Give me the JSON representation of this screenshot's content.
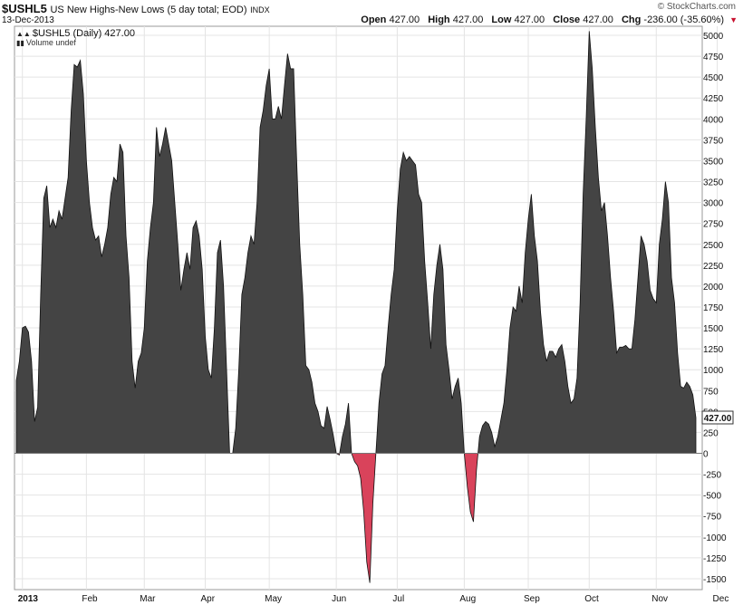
{
  "header": {
    "symbol": "$USHL5",
    "description": "US New Highs-New Lows (5 day total; EOD)",
    "exchange": "INDX",
    "date": "13-Dec-2013",
    "brand": "© StockCharts.com",
    "open_label": "Open",
    "open": "427.00",
    "high_label": "High",
    "high": "427.00",
    "low_label": "Low",
    "low": "427.00",
    "close_label": "Close",
    "close": "427.00",
    "chg_label": "Chg",
    "chg": "-236.00 (-35.60%)",
    "chg_arrow": "▼"
  },
  "legend": {
    "series_label": "$USHL5 (Daily) 427.00",
    "volume_label": "Volume undef"
  },
  "last_value_tag": "427.00",
  "colors": {
    "positive_fill": "#444444",
    "negative_fill": "#d9435b",
    "grid": "#e4e4e4",
    "axis": "#999999"
  },
  "chart_data": {
    "type": "area",
    "title": "$USHL5 US New Highs-New Lows (5 day total; EOD)",
    "xlabel": "",
    "ylabel": "",
    "ylim": [
      -1600,
      5050
    ],
    "y_ticks": [
      -1500,
      -1250,
      -1000,
      -750,
      -500,
      -250,
      0,
      250,
      500,
      750,
      1000,
      1250,
      1500,
      1750,
      2000,
      2250,
      2500,
      2750,
      3000,
      3250,
      3500,
      3750,
      4000,
      4250,
      4500,
      4750,
      5000
    ],
    "x_tick_labels": [
      "2013",
      "Feb",
      "Mar",
      "Apr",
      "May",
      "Jun",
      "Jul",
      "Aug",
      "Sep",
      "Oct",
      "Nov",
      "Dec"
    ],
    "x_tick_indices": [
      2,
      23,
      42,
      62,
      83,
      105,
      125,
      147,
      168,
      188,
      210,
      230
    ],
    "grid": true,
    "series": [
      {
        "values": [
          870,
          1100,
          1500,
          1520,
          1450,
          1100,
          380,
          550,
          1900,
          3050,
          3200,
          2700,
          2800,
          2700,
          2900,
          2800,
          3050,
          3300,
          4100,
          4650,
          4620,
          4700,
          4300,
          3500,
          3000,
          2700,
          2550,
          2600,
          2350,
          2500,
          2700,
          3100,
          3300,
          3250,
          3700,
          3600,
          2600,
          2100,
          1100,
          780,
          1100,
          1200,
          1500,
          2300,
          2700,
          3000,
          3900,
          3550,
          3700,
          3900,
          3700,
          3500,
          3000,
          2500,
          1950,
          2200,
          2400,
          2200,
          2700,
          2780,
          2600,
          2200,
          1400,
          1000,
          900,
          1500,
          2400,
          2550,
          2000,
          1000,
          0,
          0,
          300,
          1000,
          1900,
          2100,
          2400,
          2600,
          2500,
          3000,
          3900,
          4100,
          4400,
          4600,
          4000,
          4000,
          4150,
          4000,
          4400,
          4780,
          4600,
          4600,
          3500,
          2500,
          1900,
          1050,
          1000,
          850,
          600,
          500,
          330,
          300,
          560,
          400,
          220,
          0,
          -20,
          200,
          350,
          600,
          0,
          -100,
          -150,
          -300,
          -700,
          -1300,
          -1550,
          -600,
          0,
          600,
          950,
          1050,
          1500,
          1900,
          2200,
          2900,
          3400,
          3600,
          3500,
          3550,
          3500,
          3450,
          3100,
          3000,
          2300,
          1800,
          1250,
          1900,
          2250,
          2500,
          2200,
          1300,
          1000,
          650,
          800,
          900,
          600,
          0,
          -400,
          -700,
          -820,
          -200,
          200,
          330,
          380,
          350,
          250,
          80,
          200,
          400,
          600,
          1000,
          1500,
          1750,
          1700,
          2000,
          1800,
          2400,
          2800,
          3100,
          2600,
          2300,
          1700,
          1300,
          1100,
          1220,
          1220,
          1150,
          1250,
          1300,
          1100,
          800,
          600,
          650,
          900,
          1800,
          3100,
          4000,
          5050,
          4600,
          3900,
          3300,
          2900,
          3000,
          2600,
          2100,
          1700,
          1200,
          1270,
          1270,
          1290,
          1250,
          1250,
          1600,
          2100,
          2600,
          2500,
          2300,
          1950,
          1850,
          1800,
          2500,
          2800,
          3250,
          3000,
          2100,
          1800,
          1200,
          800,
          780,
          850,
          800,
          700,
          427
        ]
      }
    ]
  }
}
